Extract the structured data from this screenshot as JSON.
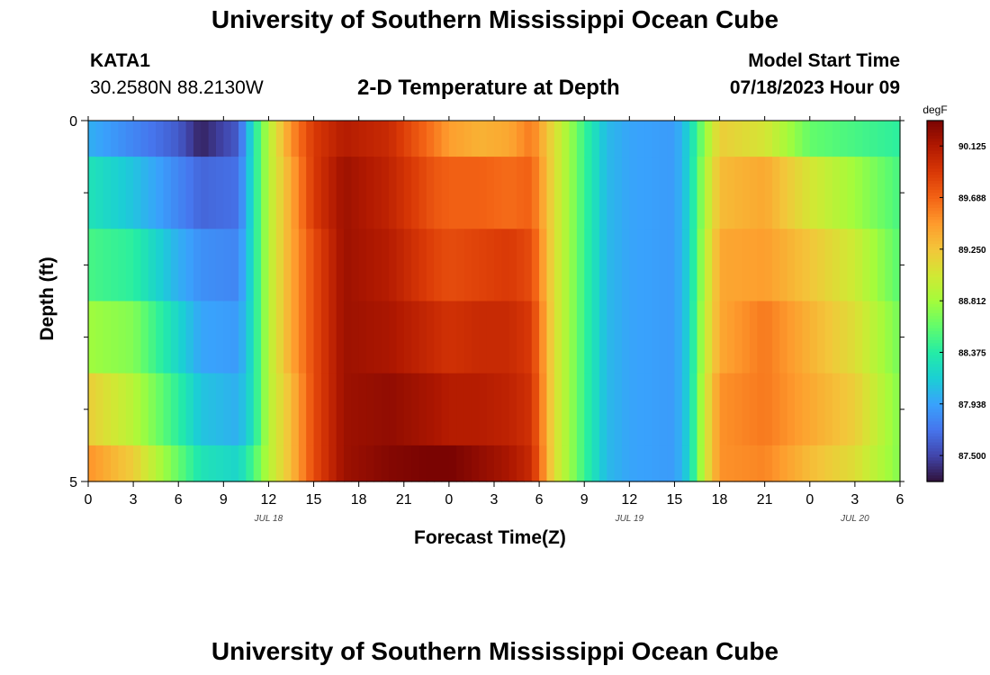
{
  "header": {
    "title": "University of Southern Mississippi Ocean Cube",
    "station": "KATA1",
    "coords": "30.2580N  88.2130W",
    "plot_title": "2-D Temperature at Depth",
    "model_label": "Model Start Time",
    "model_time": "07/18/2023 Hour 09"
  },
  "footer": {
    "title": "University of Southern Mississippi Ocean Cube"
  },
  "colors": {
    "scale": [
      "#30123b",
      "#4145ab",
      "#4675ed",
      "#39a2fc",
      "#1bcfd4",
      "#24eca6",
      "#61fc6c",
      "#a4fc3b",
      "#d1e834",
      "#f3c63a",
      "#fe9b2d",
      "#f36315",
      "#d93806",
      "#b11901",
      "#7a0402"
    ]
  },
  "chart_data": {
    "type": "heatmap",
    "title": "2-D Temperature at Depth",
    "xlabel": "Forecast Time(Z)",
    "ylabel": "Depth (ft)",
    "x_tick_labels": [
      "0",
      "3",
      "6",
      "9",
      "12",
      "15",
      "18",
      "21",
      "0",
      "3",
      "6",
      "9",
      "12",
      "15",
      "18",
      "21",
      "0",
      "3",
      "6"
    ],
    "date_labels": [
      {
        "label": "JUL 18",
        "hour": 12
      },
      {
        "label": "JUL 19",
        "hour": 36
      },
      {
        "label": "JUL 20",
        "hour": 51
      }
    ],
    "y_tick_labels": [
      "0",
      "5"
    ],
    "ylim": [
      0,
      5
    ],
    "hours": [
      0,
      54
    ],
    "depth_rows": 5,
    "colorbar": {
      "unit": "degF",
      "range": [
        87.28,
        90.34
      ],
      "ticks": [
        "87.500",
        "87.938",
        "88.375",
        "88.812",
        "89.250",
        "89.688",
        "90.125"
      ]
    },
    "profiles": [
      {
        "h": 0,
        "v": [
          88.0,
          88.3,
          88.5,
          88.8,
          89.2,
          89.5
        ]
      },
      {
        "h": 3,
        "v": [
          87.8,
          88.1,
          88.4,
          88.7,
          88.9,
          89.2
        ]
      },
      {
        "h": 6,
        "v": [
          87.6,
          87.8,
          88.0,
          88.2,
          88.4,
          88.6
        ]
      },
      {
        "h": 7.5,
        "v": [
          87.35,
          87.65,
          87.85,
          87.95,
          88.1,
          88.3
        ]
      },
      {
        "h": 10,
        "v": [
          87.6,
          87.7,
          87.8,
          87.9,
          88.0,
          88.2
        ]
      },
      {
        "h": 11,
        "v": [
          88.3,
          88.3,
          88.3,
          88.3,
          88.3,
          88.5
        ]
      },
      {
        "h": 12,
        "v": [
          88.9,
          88.9,
          88.9,
          88.9,
          88.9,
          88.9
        ]
      },
      {
        "h": 13.5,
        "v": [
          89.5,
          89.4,
          89.4,
          89.4,
          89.3,
          89.3
        ]
      },
      {
        "h": 15,
        "v": [
          89.9,
          89.9,
          89.8,
          89.8,
          89.8,
          89.8
        ]
      },
      {
        "h": 17,
        "v": [
          90.1,
          90.2,
          90.2,
          90.2,
          90.2,
          90.2
        ]
      },
      {
        "h": 20,
        "v": [
          90.0,
          90.05,
          90.1,
          90.15,
          90.25,
          90.3
        ]
      },
      {
        "h": 23,
        "v": [
          89.6,
          89.75,
          89.85,
          90.0,
          90.15,
          90.35
        ]
      },
      {
        "h": 24,
        "v": [
          89.45,
          89.7,
          89.8,
          89.95,
          90.1,
          90.35
        ]
      },
      {
        "h": 26,
        "v": [
          89.35,
          89.7,
          89.85,
          90.0,
          90.1,
          90.25
        ]
      },
      {
        "h": 28,
        "v": [
          89.4,
          89.65,
          89.9,
          90.0,
          90.05,
          90.15
        ]
      },
      {
        "h": 29.5,
        "v": [
          89.6,
          89.7,
          89.8,
          89.9,
          89.95,
          90.0
        ]
      },
      {
        "h": 31,
        "v": [
          89.1,
          89.1,
          89.1,
          89.1,
          89.1,
          89.1
        ]
      },
      {
        "h": 32,
        "v": [
          88.8,
          88.8,
          88.8,
          88.8,
          88.8,
          88.8
        ]
      },
      {
        "h": 33,
        "v": [
          88.45,
          88.45,
          88.45,
          88.45,
          88.45,
          88.45
        ]
      },
      {
        "h": 34.5,
        "v": [
          88.05,
          88.05,
          88.05,
          88.05,
          88.05,
          88.05
        ]
      },
      {
        "h": 36,
        "v": [
          87.95,
          87.95,
          87.95,
          87.95,
          87.95,
          87.95
        ]
      },
      {
        "h": 39,
        "v": [
          87.9,
          87.9,
          87.9,
          87.9,
          87.9,
          87.9
        ]
      },
      {
        "h": 40,
        "v": [
          88.2,
          88.2,
          88.2,
          88.2,
          88.2,
          88.2
        ]
      },
      {
        "h": 41,
        "v": [
          88.75,
          88.85,
          88.9,
          88.95,
          89.0,
          89.0
        ]
      },
      {
        "h": 42,
        "v": [
          89.2,
          89.3,
          89.4,
          89.4,
          89.5,
          89.5
        ]
      },
      {
        "h": 45,
        "v": [
          89.05,
          89.4,
          89.45,
          89.6,
          89.6,
          89.55
        ]
      },
      {
        "h": 48,
        "v": [
          88.6,
          89.05,
          89.25,
          89.35,
          89.4,
          89.3
        ]
      },
      {
        "h": 51,
        "v": [
          88.5,
          88.8,
          89.0,
          89.1,
          89.2,
          89.1
        ]
      },
      {
        "h": 54,
        "v": [
          88.4,
          88.5,
          88.55,
          88.65,
          88.7,
          88.7
        ]
      }
    ]
  }
}
